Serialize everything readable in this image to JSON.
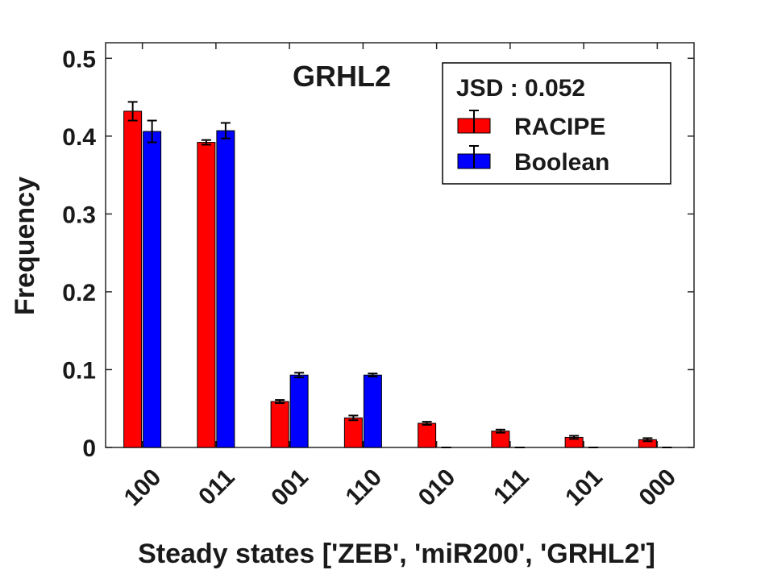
{
  "chart_data": {
    "type": "bar",
    "title": "GRHL2",
    "xlabel": "Steady states ['ZEB', 'miR200', 'GRHL2']",
    "ylabel": "Frequency",
    "ylim": [
      0,
      0.52
    ],
    "yticks": [
      "0",
      "0.1",
      "0.2",
      "0.3",
      "0.4",
      "0.5"
    ],
    "ytick_values": [
      0,
      0.1,
      0.2,
      0.3,
      0.4,
      0.5
    ],
    "categories": [
      "100",
      "011",
      "001",
      "110",
      "010",
      "111",
      "101",
      "000"
    ],
    "annotation": "JSD : 0.052",
    "legend_position": "top-right",
    "grid": false,
    "series": [
      {
        "name": "RACIPE",
        "color": "#ff0000",
        "values": [
          0.432,
          0.392,
          0.059,
          0.038,
          0.031,
          0.021,
          0.013,
          0.01
        ],
        "errors": [
          0.012,
          0.003,
          0.002,
          0.003,
          0.002,
          0.002,
          0.002,
          0.002
        ]
      },
      {
        "name": "Boolean",
        "color": "#0000ff",
        "values": [
          0.406,
          0.407,
          0.093,
          0.093,
          0.0,
          0.0,
          0.0,
          0.0
        ],
        "errors": [
          0.014,
          0.01,
          0.003,
          0.002,
          0.0,
          0.0,
          0.0,
          0.0
        ]
      }
    ]
  }
}
